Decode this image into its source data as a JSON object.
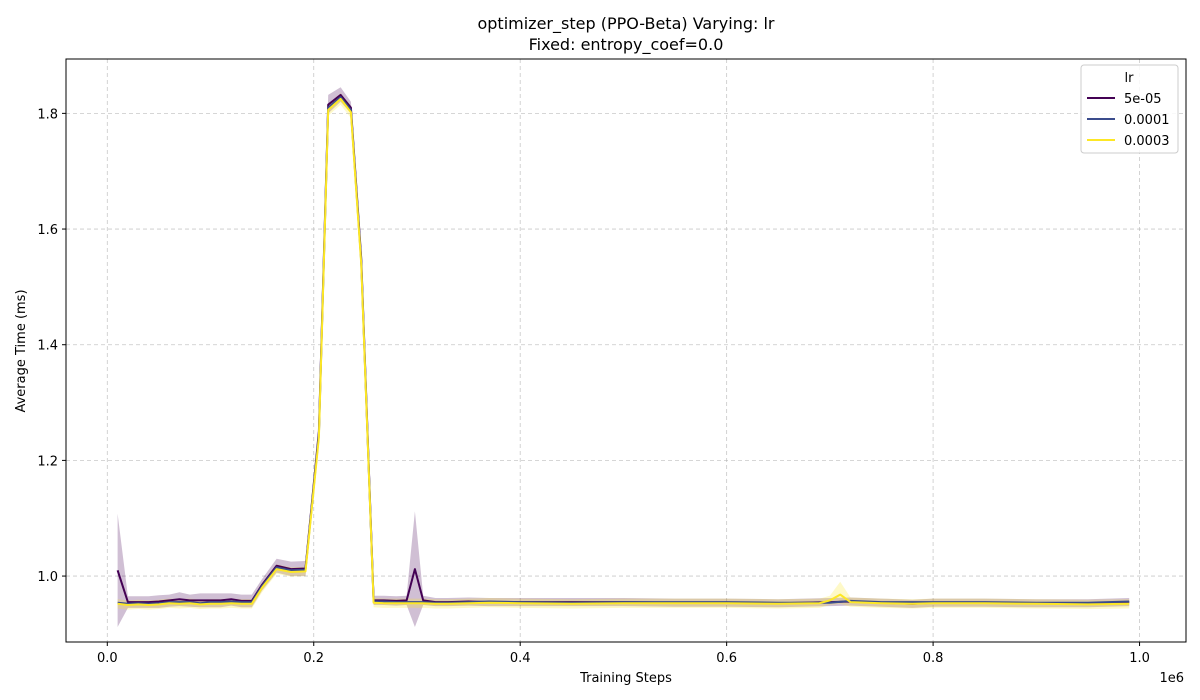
{
  "chart_data": {
    "type": "line",
    "title": "optimizer_step (PPO-Beta) Varying: lr",
    "subtitle": "Fixed: entropy_coef=0.0",
    "xlabel": "Training Steps",
    "ylabel": "Average Time (ms)",
    "x_offset_label": "1e6",
    "xlim": [
      -0.04,
      1.045
    ],
    "ylim": [
      0.886,
      1.894
    ],
    "x_ticks": [
      0.0,
      0.2,
      0.4,
      0.6,
      0.8,
      1.0
    ],
    "x_tick_labels": [
      "0.0",
      "0.2",
      "0.4",
      "0.6",
      "0.8",
      "1.0"
    ],
    "y_ticks": [
      1.0,
      1.2,
      1.4,
      1.6,
      1.8
    ],
    "y_tick_labels": [
      "1.0",
      "1.2",
      "1.4",
      "1.6",
      "1.8"
    ],
    "grid": true,
    "legend": {
      "title": "lr",
      "position": "top-right"
    },
    "series": [
      {
        "name": "5e-05",
        "color": "#440154",
        "x": [
          0.01,
          0.02,
          0.03,
          0.04,
          0.05,
          0.06,
          0.07,
          0.08,
          0.09,
          0.1,
          0.11,
          0.12,
          0.13,
          0.14,
          0.15,
          0.164,
          0.178,
          0.192,
          0.205,
          0.214,
          0.226,
          0.236,
          0.246,
          0.258,
          0.268,
          0.28,
          0.29,
          0.298,
          0.306,
          0.318,
          0.33,
          0.35,
          0.37,
          0.4,
          0.45,
          0.5,
          0.55,
          0.6,
          0.65,
          0.7,
          0.72,
          0.75,
          0.78,
          0.8,
          0.85,
          0.9,
          0.95,
          0.99
        ],
        "y": [
          1.01,
          0.955,
          0.955,
          0.955,
          0.956,
          0.958,
          0.96,
          0.958,
          0.958,
          0.958,
          0.958,
          0.96,
          0.957,
          0.957,
          0.985,
          1.018,
          1.012,
          1.013,
          1.25,
          1.815,
          1.832,
          1.81,
          1.55,
          0.958,
          0.958,
          0.957,
          0.958,
          1.012,
          0.958,
          0.955,
          0.955,
          0.956,
          0.955,
          0.955,
          0.955,
          0.955,
          0.954,
          0.954,
          0.953,
          0.955,
          0.956,
          0.954,
          0.952,
          0.954,
          0.954,
          0.953,
          0.953,
          0.955
        ],
        "band_upper": [
          1.108,
          0.965,
          0.965,
          0.965,
          0.967,
          0.968,
          0.972,
          0.968,
          0.97,
          0.97,
          0.97,
          0.97,
          0.968,
          0.968,
          0.995,
          1.03,
          1.025,
          1.026,
          1.26,
          1.832,
          1.845,
          1.82,
          1.56,
          0.966,
          0.966,
          0.965,
          0.966,
          1.112,
          0.966,
          0.962,
          0.962,
          0.963,
          0.962,
          0.962,
          0.962,
          0.962,
          0.961,
          0.961,
          0.96,
          0.962,
          0.963,
          0.961,
          0.959,
          0.961,
          0.961,
          0.96,
          0.96,
          0.962
        ],
        "band_lower": [
          0.912,
          0.945,
          0.945,
          0.945,
          0.945,
          0.947,
          0.948,
          0.947,
          0.946,
          0.946,
          0.946,
          0.949,
          0.946,
          0.946,
          0.975,
          1.006,
          1.0,
          1.0,
          1.24,
          1.8,
          1.82,
          1.8,
          1.54,
          0.95,
          0.95,
          0.949,
          0.95,
          0.912,
          0.95,
          0.948,
          0.948,
          0.949,
          0.948,
          0.948,
          0.948,
          0.948,
          0.947,
          0.947,
          0.946,
          0.948,
          0.949,
          0.947,
          0.945,
          0.947,
          0.947,
          0.946,
          0.946,
          0.948
        ]
      },
      {
        "name": "0.0001",
        "color": "#3b4c8c",
        "x": [
          0.01,
          0.02,
          0.03,
          0.04,
          0.05,
          0.06,
          0.07,
          0.08,
          0.09,
          0.1,
          0.11,
          0.12,
          0.13,
          0.14,
          0.15,
          0.164,
          0.178,
          0.192,
          0.205,
          0.214,
          0.226,
          0.236,
          0.246,
          0.258,
          0.268,
          0.28,
          0.29,
          0.298,
          0.306,
          0.318,
          0.33,
          0.35,
          0.37,
          0.4,
          0.45,
          0.5,
          0.55,
          0.6,
          0.65,
          0.7,
          0.72,
          0.75,
          0.78,
          0.8,
          0.85,
          0.9,
          0.95,
          0.99
        ],
        "y": [
          0.954,
          0.952,
          0.953,
          0.952,
          0.953,
          0.955,
          0.955,
          0.955,
          0.953,
          0.955,
          0.955,
          0.956,
          0.955,
          0.955,
          0.983,
          1.015,
          1.01,
          1.011,
          1.245,
          1.81,
          1.828,
          1.806,
          1.545,
          0.956,
          0.956,
          0.955,
          0.955,
          0.955,
          0.955,
          0.954,
          0.954,
          0.955,
          0.956,
          0.955,
          0.954,
          0.955,
          0.955,
          0.955,
          0.954,
          0.954,
          0.957,
          0.955,
          0.955,
          0.955,
          0.955,
          0.954,
          0.954,
          0.956
        ]
      },
      {
        "name": "0.0003",
        "color": "#fde725",
        "x": [
          0.01,
          0.02,
          0.03,
          0.04,
          0.05,
          0.06,
          0.07,
          0.08,
          0.09,
          0.1,
          0.11,
          0.12,
          0.13,
          0.14,
          0.15,
          0.164,
          0.178,
          0.192,
          0.205,
          0.214,
          0.226,
          0.236,
          0.246,
          0.258,
          0.268,
          0.28,
          0.29,
          0.298,
          0.306,
          0.318,
          0.33,
          0.35,
          0.37,
          0.4,
          0.45,
          0.5,
          0.55,
          0.6,
          0.65,
          0.69,
          0.7,
          0.71,
          0.72,
          0.75,
          0.78,
          0.8,
          0.85,
          0.9,
          0.95,
          0.99
        ],
        "y": [
          0.952,
          0.95,
          0.951,
          0.95,
          0.951,
          0.953,
          0.952,
          0.953,
          0.951,
          0.952,
          0.952,
          0.953,
          0.952,
          0.952,
          0.98,
          1.012,
          1.007,
          1.008,
          1.24,
          1.806,
          1.825,
          1.802,
          1.54,
          0.954,
          0.953,
          0.953,
          0.953,
          0.953,
          0.953,
          0.952,
          0.952,
          0.953,
          0.954,
          0.953,
          0.952,
          0.953,
          0.953,
          0.953,
          0.952,
          0.953,
          0.958,
          0.968,
          0.955,
          0.953,
          0.952,
          0.953,
          0.953,
          0.952,
          0.951,
          0.952
        ],
        "band_upper": [
          0.96,
          0.958,
          0.959,
          0.958,
          0.959,
          0.961,
          0.96,
          0.961,
          0.959,
          0.96,
          0.96,
          0.961,
          0.96,
          0.96,
          0.988,
          1.02,
          1.015,
          1.016,
          1.25,
          1.816,
          1.835,
          1.812,
          1.55,
          0.962,
          0.961,
          0.961,
          0.961,
          0.961,
          0.961,
          0.96,
          0.96,
          0.961,
          0.962,
          0.961,
          0.96,
          0.961,
          0.961,
          0.961,
          0.96,
          0.961,
          0.966,
          0.99,
          0.963,
          0.961,
          0.96,
          0.961,
          0.961,
          0.96,
          0.959,
          0.96
        ],
        "band_lower": [
          0.944,
          0.942,
          0.943,
          0.942,
          0.943,
          0.945,
          0.944,
          0.945,
          0.943,
          0.944,
          0.944,
          0.945,
          0.944,
          0.944,
          0.972,
          1.004,
          0.999,
          1.0,
          1.23,
          1.796,
          1.815,
          1.792,
          1.53,
          0.946,
          0.945,
          0.945,
          0.945,
          0.945,
          0.945,
          0.944,
          0.944,
          0.945,
          0.946,
          0.945,
          0.944,
          0.945,
          0.945,
          0.945,
          0.944,
          0.945,
          0.95,
          0.952,
          0.947,
          0.945,
          0.944,
          0.945,
          0.945,
          0.944,
          0.943,
          0.944
        ]
      }
    ]
  }
}
